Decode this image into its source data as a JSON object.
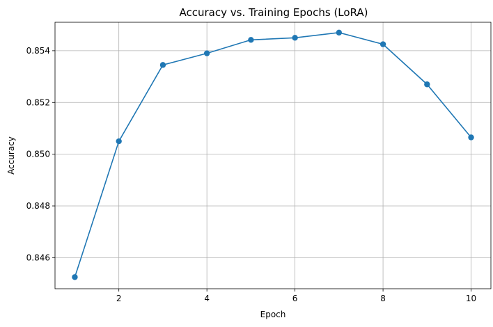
{
  "chart_data": {
    "type": "line",
    "title": "Accuracy vs. Training Epochs (LoRA)",
    "xlabel": "Epoch",
    "ylabel": "Accuracy",
    "x": [
      1,
      2,
      3,
      4,
      5,
      6,
      7,
      8,
      9,
      10
    ],
    "series": [
      {
        "name": "Accuracy",
        "color": "#1f77b4",
        "values": [
          0.84525,
          0.8505,
          0.85345,
          0.8539,
          0.85442,
          0.8545,
          0.8547,
          0.85425,
          0.8527,
          0.85065
        ]
      }
    ],
    "xlim": [
      0.55,
      10.45
    ],
    "ylim": [
      0.8448,
      0.8551
    ],
    "xticks": [
      2,
      4,
      6,
      8,
      10
    ],
    "xtick_labels": [
      "2",
      "4",
      "6",
      "8",
      "10"
    ],
    "yticks": [
      0.846,
      0.848,
      0.85,
      0.852,
      0.854
    ],
    "ytick_labels": [
      "0.846",
      "0.848",
      "0.850",
      "0.852",
      "0.854"
    ],
    "grid": true,
    "marker": "circle"
  }
}
